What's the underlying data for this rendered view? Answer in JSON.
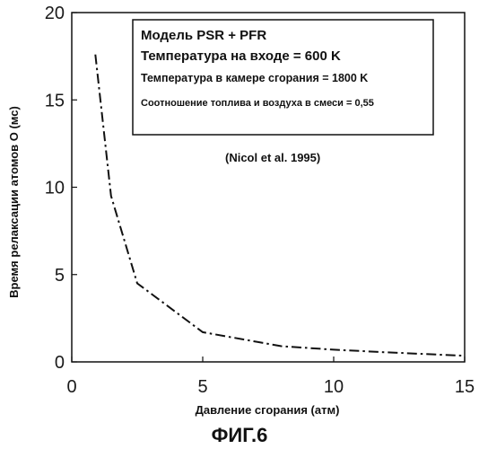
{
  "chart_data": {
    "type": "line",
    "xlabel": "Давление сгорания (атм)",
    "ylabel": "Время релаксации атомов О (мс)",
    "xlim": [
      0,
      15
    ],
    "ylim": [
      0,
      20
    ],
    "x_ticks": [
      0,
      5,
      10,
      15
    ],
    "y_ticks": [
      0,
      5,
      10,
      15,
      20
    ],
    "grid": false,
    "series": [
      {
        "line_style": "dash-dot",
        "color": "#111111",
        "x": [
          0.9,
          1.5,
          2.5,
          5.0,
          8.0,
          10.0,
          12.0,
          15.0
        ],
        "y": [
          17.6,
          9.5,
          4.5,
          1.7,
          0.9,
          0.7,
          0.55,
          0.35
        ]
      }
    ],
    "legend_box": {
      "position": "top-right",
      "lines": [
        "Модель PSR + PFR",
        "Температура на входе = 600 K",
        "Температура в камере сгорания = 1800 K",
        "Соотношение топлива и воздуха в смеси = 0,55"
      ]
    },
    "annotation": "(Nicol et al. 1995)"
  },
  "caption": "ФИГ.6"
}
